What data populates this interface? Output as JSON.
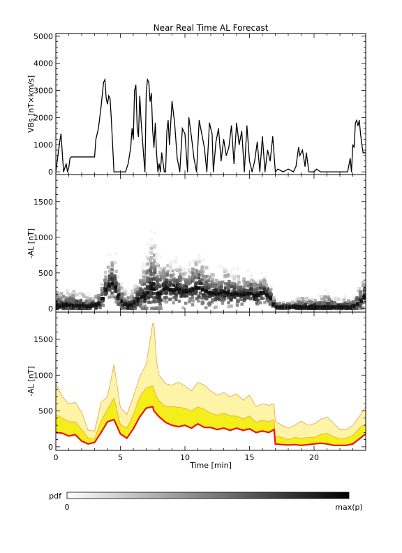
{
  "figure": {
    "title": "Near Real Time AL Forecast",
    "xlabel": "Time [min]"
  },
  "colorbar": {
    "label": "pdf",
    "min_label": "0",
    "max_label": "max(p)",
    "color_min": "#ffffff",
    "color_max": "#000000"
  },
  "colors": {
    "outer_band": "#fdf4a8",
    "inner_band": "#f4ee1a",
    "band_edge": "#e8a24a",
    "median": "#ee1111",
    "vbs_line": "#000000"
  },
  "chart_data": [
    {
      "type": "line",
      "panel": "vbs",
      "ylabel": "VBs [nT×km/s]",
      "xlim": [
        0,
        24
      ],
      "ylim": [
        -100,
        5100
      ],
      "yticks": [
        0,
        1000,
        2000,
        3000,
        4000,
        5000
      ],
      "x": [
        0.0,
        0.3,
        0.4,
        0.6,
        0.8,
        0.9,
        1.0,
        1.1,
        1.2,
        1.3,
        3.0,
        3.1,
        3.3,
        3.5,
        3.7,
        3.8,
        3.9,
        4.0,
        4.1,
        4.2,
        4.3,
        4.5,
        4.8,
        5.2,
        5.4,
        5.6,
        5.8,
        5.9,
        6.0,
        6.1,
        6.2,
        6.3,
        6.4,
        6.5,
        6.6,
        6.8,
        6.9,
        7.0,
        7.1,
        7.2,
        7.3,
        7.4,
        7.5,
        7.6,
        7.7,
        7.8,
        7.9,
        8.0,
        8.1,
        8.2,
        8.4,
        8.5,
        8.6,
        8.7,
        8.8,
        9.0,
        9.2,
        9.4,
        9.6,
        9.8,
        10.0,
        10.2,
        10.3,
        10.5,
        10.7,
        10.9,
        11.1,
        11.3,
        11.5,
        11.7,
        11.9,
        12.1,
        12.2,
        12.4,
        12.6,
        12.8,
        13.0,
        13.2,
        13.4,
        13.6,
        13.8,
        14.0,
        14.2,
        14.4,
        14.6,
        14.8,
        15.0,
        15.2,
        15.4,
        15.6,
        15.8,
        16.0,
        16.2,
        16.4,
        16.6,
        16.8,
        17.0,
        17.2,
        17.6,
        18.0,
        18.4,
        18.6,
        18.8,
        18.9,
        19.1,
        19.3,
        19.4,
        19.6,
        20.0,
        20.2,
        20.5,
        21.0,
        21.5,
        22.0,
        22.6,
        22.8,
        22.9,
        23.0,
        23.1,
        23.2,
        23.3,
        23.4,
        23.5,
        23.6,
        23.7,
        23.8,
        24.0
      ],
      "values": [
        0,
        1100,
        1400,
        0,
        300,
        0,
        150,
        500,
        550,
        550,
        550,
        1200,
        1600,
        2400,
        3300,
        3400,
        2700,
        2500,
        2800,
        2700,
        1900,
        0,
        0,
        0,
        0,
        300,
        900,
        1600,
        1200,
        3000,
        3200,
        1600,
        1300,
        2800,
        1900,
        600,
        0,
        2900,
        3400,
        3300,
        2600,
        2900,
        1500,
        900,
        1800,
        700,
        0,
        300,
        0,
        700,
        0,
        0,
        1500,
        1900,
        1000,
        2600,
        1800,
        500,
        0,
        1600,
        1400,
        0,
        2000,
        1300,
        500,
        0,
        1900,
        1400,
        900,
        0,
        1800,
        1400,
        0,
        1100,
        1600,
        400,
        1200,
        600,
        900,
        1700,
        300,
        1800,
        1000,
        1500,
        0,
        1700,
        400,
        0,
        400,
        1100,
        0,
        1300,
        0,
        800,
        400,
        1300,
        0,
        100,
        0,
        100,
        0,
        200,
        900,
        600,
        800,
        200,
        700,
        0,
        0,
        100,
        0,
        0,
        0,
        0,
        0,
        500,
        0,
        1000,
        900,
        1800,
        1900,
        1700,
        1900,
        1400,
        1000,
        700,
        700
      ]
    },
    {
      "type": "heatmap",
      "panel": "pdf",
      "ylabel": "-AL [nT]",
      "xlim": [
        0,
        24
      ],
      "ylim": [
        -50,
        1880
      ],
      "yticks": [
        0,
        500,
        1000,
        1500
      ],
      "x": [
        0,
        0.5,
        1.0,
        1.5,
        2.0,
        2.5,
        3.0,
        3.5,
        4.0,
        4.5,
        5.0,
        5.5,
        6.0,
        6.5,
        7.0,
        7.5,
        8.0,
        8.5,
        9.0,
        9.5,
        10.0,
        10.5,
        11.0,
        11.5,
        12.0,
        12.5,
        13.0,
        13.5,
        14.0,
        14.5,
        15.0,
        15.5,
        16.0,
        16.5,
        17.0,
        17.5,
        18.0,
        18.5,
        19.0,
        19.5,
        20.0,
        20.5,
        21.0,
        21.5,
        22.0,
        22.5,
        23.0,
        23.5,
        24.0
      ],
      "mode": [
        40,
        30,
        50,
        40,
        40,
        30,
        40,
        80,
        320,
        360,
        120,
        40,
        60,
        150,
        200,
        300,
        180,
        300,
        250,
        280,
        220,
        260,
        300,
        250,
        220,
        200,
        230,
        200,
        210,
        190,
        220,
        170,
        230,
        180,
        20,
        20,
        20,
        20,
        20,
        20,
        20,
        20,
        20,
        20,
        20,
        20,
        20,
        80,
        180
      ],
      "spread": [
        400,
        350,
        300,
        350,
        300,
        200,
        200,
        300,
        500,
        700,
        400,
        250,
        350,
        500,
        800,
        1300,
        700,
        600,
        550,
        600,
        500,
        600,
        700,
        650,
        500,
        500,
        550,
        500,
        450,
        400,
        450,
        400,
        400,
        350,
        80,
        120,
        100,
        150,
        250,
        200,
        200,
        250,
        350,
        200,
        150,
        200,
        150,
        350,
        450
      ]
    },
    {
      "type": "area",
      "panel": "forecast",
      "ylabel": "-AL [nT]",
      "xlabel": "Time [min]",
      "xlim": [
        0,
        24
      ],
      "ylim": [
        -50,
        1880
      ],
      "yticks": [
        0,
        500,
        1000,
        1500
      ],
      "xticks": [
        0,
        5,
        10,
        15,
        20
      ],
      "x": [
        0,
        0.5,
        1.0,
        1.5,
        2.0,
        2.5,
        3.0,
        3.5,
        4.0,
        4.5,
        5.0,
        5.5,
        6.0,
        6.5,
        7.0,
        7.5,
        7.6,
        7.8,
        8.0,
        8.5,
        9.0,
        9.5,
        10.0,
        10.5,
        11.0,
        11.5,
        12.0,
        12.5,
        13.0,
        13.5,
        14.0,
        14.5,
        15.0,
        15.5,
        16.0,
        16.5,
        16.9,
        17.0,
        17.5,
        18.0,
        18.5,
        19.0,
        19.5,
        20.0,
        20.5,
        21.0,
        21.5,
        22.0,
        22.5,
        23.0,
        23.5,
        24.0
      ],
      "series": [
        {
          "values": [
            200,
            190,
            150,
            170,
            80,
            40,
            60,
            200,
            350,
            380,
            180,
            120,
            250,
            420,
            540,
            560,
            500,
            460,
            420,
            340,
            300,
            280,
            300,
            260,
            320,
            270,
            270,
            240,
            260,
            230,
            260,
            230,
            250,
            200,
            220,
            200,
            240,
            40,
            30,
            25,
            30,
            20,
            30,
            40,
            50,
            40,
            20,
            20,
            20,
            40,
            110,
            180
          ]
        },
        {
          "values": [
            450,
            400,
            350,
            350,
            240,
            120,
            110,
            360,
            520,
            680,
            310,
            260,
            450,
            700,
            820,
            850,
            800,
            700,
            640,
            560,
            560,
            550,
            540,
            500,
            560,
            520,
            470,
            440,
            470,
            430,
            430,
            390,
            430,
            340,
            370,
            350,
            380,
            150,
            130,
            100,
            130,
            120,
            130,
            130,
            170,
            190,
            140,
            110,
            120,
            160,
            260,
            320
          ]
        },
        {
          "values": [
            880,
            700,
            600,
            620,
            480,
            230,
            220,
            620,
            700,
            1150,
            550,
            450,
            700,
            980,
            1150,
            1720,
            1720,
            1200,
            1000,
            880,
            860,
            900,
            850,
            780,
            900,
            860,
            780,
            720,
            760,
            700,
            740,
            650,
            720,
            560,
            600,
            580,
            600,
            360,
            300,
            260,
            300,
            360,
            300,
            320,
            380,
            420,
            330,
            240,
            240,
            300,
            420,
            560
          ]
        }
      ]
    }
  ]
}
